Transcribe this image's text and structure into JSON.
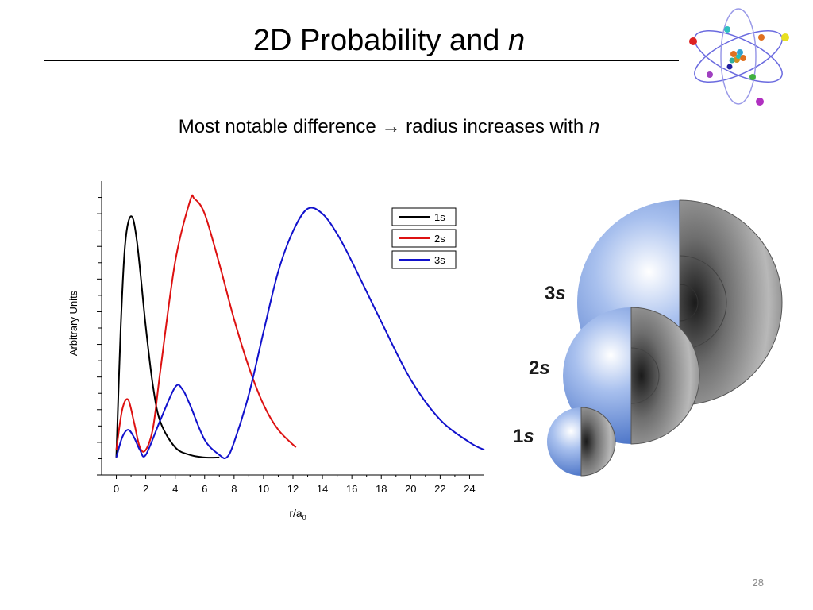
{
  "slide": {
    "title": "2D Probability and ",
    "title_var": "n",
    "subtitle_pre": "Most notable difference ",
    "subtitle_arrow": "→",
    "subtitle_post": " radius increases with ",
    "subtitle_var": "n",
    "page_number": "28"
  },
  "sphere_labels": {
    "s3": {
      "num": "3",
      "letter": "s"
    },
    "s2": {
      "num": "2",
      "letter": "s"
    },
    "s1": {
      "num": "1",
      "letter": "s"
    }
  },
  "colors": {
    "s1": "#000000",
    "s2": "#dd1111",
    "s3": "#1111cc",
    "sphere_blue": "#4d78cc",
    "sphere_gray": "#8a8a8a"
  },
  "chart_data": {
    "type": "line",
    "xlabel": "r/a",
    "xlabel_sub": "0",
    "ylabel": "Arbitrary Units",
    "xlim": [
      -1,
      25
    ],
    "ylim": [
      -0.07,
      1.1
    ],
    "x_ticks": [
      0,
      2,
      4,
      6,
      8,
      10,
      12,
      14,
      16,
      18,
      20,
      22,
      24
    ],
    "grid": false,
    "legend_position": "top-right",
    "series": [
      {
        "name": "1s",
        "color": "#000000",
        "x": [
          0,
          0.3,
          0.6,
          1.0,
          1.4,
          2.0,
          2.5,
          3.0,
          4.0,
          5.0,
          6.0,
          7.0
        ],
        "y": [
          0.0,
          0.52,
          0.85,
          0.96,
          0.86,
          0.52,
          0.28,
          0.14,
          0.04,
          0.01,
          0.0,
          0.0
        ]
      },
      {
        "name": "2s",
        "color": "#dd1111",
        "x": [
          0,
          0.4,
          0.8,
          1.2,
          1.6,
          2.0,
          2.5,
          3.0,
          4.0,
          5.0,
          5.3,
          6.0,
          7.0,
          8.0,
          9.0,
          10.0,
          11.0,
          12.2
        ],
        "y": [
          0.03,
          0.19,
          0.23,
          0.14,
          0.04,
          0.03,
          0.12,
          0.35,
          0.78,
          1.02,
          1.03,
          0.97,
          0.77,
          0.55,
          0.36,
          0.21,
          0.11,
          0.04
        ]
      },
      {
        "name": "3s",
        "color": "#1111cc",
        "x": [
          0,
          0.4,
          0.8,
          1.2,
          1.6,
          2.0,
          3.0,
          4.0,
          4.5,
          5.0,
          6.0,
          7.0,
          7.5,
          8.0,
          9.0,
          10.0,
          11.0,
          12.0,
          13.0,
          14.0,
          15.0,
          16.0,
          18.0,
          20.0,
          22.0,
          24.0,
          25.0
        ],
        "y": [
          0.0,
          0.08,
          0.11,
          0.08,
          0.03,
          0.01,
          0.15,
          0.28,
          0.27,
          0.21,
          0.07,
          0.01,
          0.0,
          0.06,
          0.25,
          0.5,
          0.74,
          0.9,
          0.99,
          0.97,
          0.89,
          0.78,
          0.54,
          0.31,
          0.15,
          0.06,
          0.03
        ]
      }
    ]
  }
}
